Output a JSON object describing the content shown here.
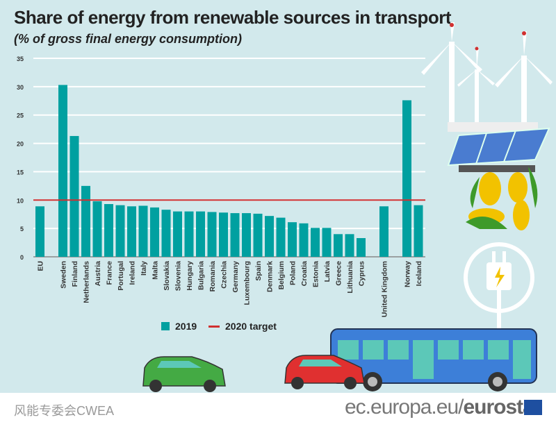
{
  "header": {
    "title": "Share of energy from renewable sources in transport",
    "subtitle": "(% of gross final energy consumption)"
  },
  "colors": {
    "bar": "#00a0a0",
    "target": "#d03030",
    "background": "#d2e9ec"
  },
  "chart_data": {
    "type": "bar",
    "title": "Share of energy from renewable sources in transport",
    "ylabel": "% of gross final energy consumption",
    "ylim": [
      0,
      35
    ],
    "yticks": [
      "0",
      "5",
      "10",
      "15",
      "20",
      "25",
      "30",
      "35"
    ],
    "grid": true,
    "legend_position": "bottom",
    "categories": [
      "EU",
      "Sweden",
      "Finland",
      "Netherlands",
      "Austria",
      "France",
      "Portugal",
      "Ireland",
      "Italy",
      "Malta",
      "Slovakia",
      "Slovenia",
      "Hungary",
      "Bulgaria",
      "Romania",
      "Czechia",
      "Germany",
      "Luxembourg",
      "Spain",
      "Denmark",
      "Belgium",
      "Poland",
      "Croatia",
      "Estonia",
      "Latvia",
      "Greece",
      "Lithuania",
      "Cyprus",
      "United Kingdom",
      "Norway",
      "Iceland"
    ],
    "slots": [
      0,
      2,
      3,
      4,
      5,
      6,
      7,
      8,
      9,
      10,
      11,
      12,
      13,
      14,
      15,
      16,
      17,
      18,
      19,
      20,
      21,
      22,
      23,
      24,
      25,
      26,
      27,
      28,
      30,
      32,
      33
    ],
    "series": [
      {
        "name": "2019",
        "values": [
          8.9,
          30.3,
          21.3,
          12.5,
          9.8,
          9.3,
          9.1,
          8.9,
          9.0,
          8.7,
          8.3,
          8.0,
          8.0,
          8.0,
          7.9,
          7.8,
          7.7,
          7.7,
          7.6,
          7.2,
          6.9,
          6.1,
          5.9,
          5.1,
          5.1,
          4.0,
          4.0,
          3.3,
          8.9,
          27.6,
          9.1
        ]
      }
    ],
    "target": {
      "name": "2020 target",
      "value": 10
    }
  },
  "footer": {
    "url_plain": "ec.europa.eu/",
    "url_bold": "eurostat",
    "watermark": "风能专委会CWEA"
  }
}
